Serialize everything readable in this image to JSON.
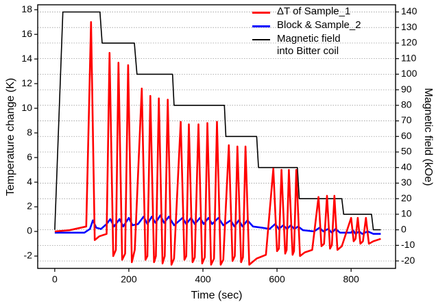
{
  "chart_data": {
    "type": "line",
    "x_label": "Time (sec)",
    "y_label": "Temperature change (K)",
    "y2_label": "Magnetic field (kOe)",
    "xlim": [
      -46,
      920
    ],
    "xticks": [
      0,
      200,
      400,
      600,
      800
    ],
    "ylim": [
      -3,
      18.4
    ],
    "yticks": [
      -2,
      0,
      2,
      4,
      6,
      8,
      10,
      12,
      14,
      16,
      18
    ],
    "y2lim": [
      -24.8,
      144.6
    ],
    "y2ticks": [
      -20,
      -10,
      0,
      10,
      20,
      30,
      40,
      50,
      60,
      70,
      80,
      90,
      100,
      110,
      120,
      130,
      140
    ],
    "grid": "y2",
    "legend": "top-right",
    "series": [
      {
        "name": "ΔT of Sample_1",
        "color": "#ff0000",
        "axis": "y",
        "x": [
          0,
          40,
          85,
          98,
          108,
          120,
          140,
          148,
          158,
          165,
          172,
          182,
          190,
          198,
          208,
          216,
          235,
          245,
          250,
          258,
          268,
          273,
          281,
          291,
          297,
          305,
          315,
          322,
          340,
          350,
          355,
          362,
          372,
          378,
          388,
          398,
          405,
          412,
          422,
          430,
          438,
          448,
          455,
          470,
          480,
          486,
          493,
          503,
          508,
          515,
          525,
          533,
          545,
          570,
          590,
          600,
          605,
          612,
          622,
          626,
          632,
          642,
          646,
          652,
          662,
          675,
          695,
          712,
          720,
          727,
          735,
          743,
          748,
          755,
          763,
          775,
          800,
          807,
          812,
          818,
          825,
          832,
          840,
          848,
          860,
          880
        ],
        "values": [
          0,
          0.1,
          0.4,
          17.0,
          -0.7,
          -0.4,
          -0.2,
          14.5,
          -2.0,
          -1.5,
          13.7,
          -2.3,
          -1.8,
          13.5,
          -2.5,
          -1.5,
          11.6,
          -2.3,
          -2.0,
          11.0,
          -2.5,
          -2.0,
          10.8,
          -2.6,
          -2.0,
          10.7,
          -2.7,
          -2.2,
          8.9,
          -2.3,
          -2.0,
          8.7,
          -2.5,
          -2.1,
          8.7,
          -2.6,
          -2.1,
          8.8,
          -2.7,
          -2.2,
          8.9,
          -2.7,
          -2.3,
          7.0,
          -2.4,
          -2.0,
          6.9,
          -2.5,
          -2.1,
          6.9,
          -2.7,
          -2.5,
          -2.2,
          -1.9,
          5.1,
          -1.6,
          -1.4,
          5.0,
          -1.8,
          -1.5,
          5.0,
          -1.9,
          -1.6,
          5.0,
          -2.0,
          -1.7,
          -1.5,
          2.8,
          -1.2,
          -1.0,
          2.9,
          -1.4,
          -1.1,
          2.9,
          -1.5,
          -1.2,
          1.1,
          -0.8,
          -0.6,
          1.1,
          -1.0,
          -0.8,
          1.1,
          -1.0,
          -0.8,
          -0.6
        ]
      },
      {
        "name": "Block & Sample_2",
        "color": "#0000ff",
        "axis": "y",
        "x": [
          0,
          80,
          95,
          103,
          112,
          125,
          140,
          150,
          160,
          175,
          185,
          200,
          210,
          225,
          240,
          250,
          262,
          272,
          285,
          295,
          308,
          322,
          345,
          355,
          368,
          378,
          392,
          402,
          415,
          425,
          442,
          455,
          475,
          485,
          497,
          507,
          520,
          535,
          560,
          580,
          595,
          605,
          617,
          627,
          637,
          647,
          657,
          670,
          700,
          715,
          725,
          738,
          748,
          758,
          770,
          800,
          805,
          812,
          822,
          830,
          845,
          860,
          880
        ],
        "values": [
          -0.1,
          -0.1,
          0.2,
          0.9,
          0.3,
          0.2,
          0.6,
          1.0,
          0.4,
          1.0,
          0.4,
          1.1,
          0.5,
          0.6,
          1.2,
          0.6,
          1.2,
          0.7,
          1.3,
          0.7,
          1.2,
          0.5,
          1.1,
          0.6,
          1.1,
          0.6,
          1.1,
          0.6,
          1.1,
          0.6,
          1.1,
          0.5,
          0.9,
          0.4,
          0.9,
          0.4,
          0.9,
          0.4,
          0.3,
          0.2,
          0.6,
          0.2,
          0.5,
          0.2,
          0.5,
          0.2,
          0.4,
          0.1,
          0.0,
          0.3,
          0.0,
          0.2,
          -0.1,
          0.2,
          -0.1,
          -0.1,
          0.1,
          -0.2,
          0.0,
          -0.2,
          0.0,
          -0.2,
          -0.2
        ]
      },
      {
        "name": "Magnetic field\ninto Bitter coil",
        "color": "#000000",
        "axis": "y2",
        "x": [
          0,
          22,
          122,
          128,
          215,
          222,
          318,
          322,
          458,
          462,
          545,
          550,
          655,
          660,
          775,
          780,
          855,
          860,
          880
        ],
        "values": [
          0,
          140,
          140,
          120,
          120,
          100,
          100,
          80,
          80,
          60,
          60,
          40,
          40,
          20,
          20,
          10,
          10,
          0,
          0
        ]
      }
    ]
  }
}
